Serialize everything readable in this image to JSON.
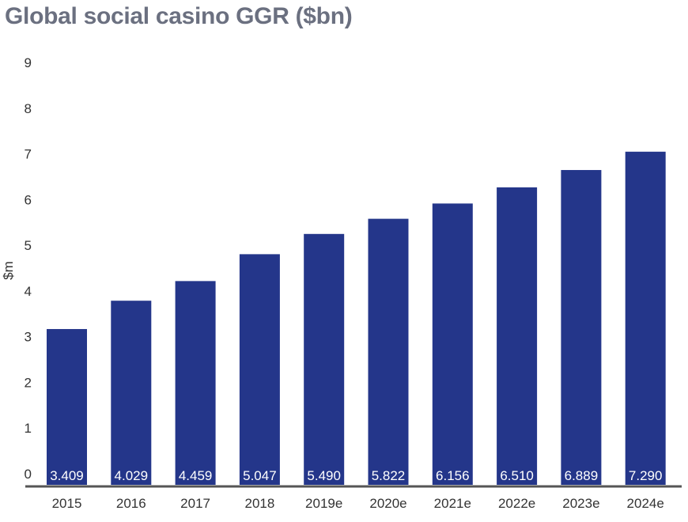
{
  "title": "Global social casino GGR ($bn)",
  "colors": {
    "bar": "#24368a",
    "axis": "#555555",
    "title": "#6b7080",
    "label": "#ffffff"
  },
  "chart_data": {
    "type": "bar",
    "title": "Global social casino GGR ($bn)",
    "xlabel": "",
    "ylabel": "$m",
    "ylim": [
      0,
      9
    ],
    "yticks": [
      0,
      1,
      2,
      3,
      4,
      5,
      6,
      7,
      8,
      9
    ],
    "grid": false,
    "legend": "none",
    "categories": [
      "2015",
      "2016",
      "2017",
      "2018",
      "2019e",
      "2020e",
      "2021e",
      "2022e",
      "2023e",
      "2024e"
    ],
    "values": [
      3.409,
      4.029,
      4.459,
      5.047,
      5.49,
      5.822,
      6.156,
      6.51,
      6.889,
      7.29
    ],
    "value_labels": [
      "3.409",
      "4.029",
      "4.459",
      "5.047",
      "5.490",
      "5.822",
      "6.156",
      "6.510",
      "6.889",
      "7.290"
    ]
  }
}
